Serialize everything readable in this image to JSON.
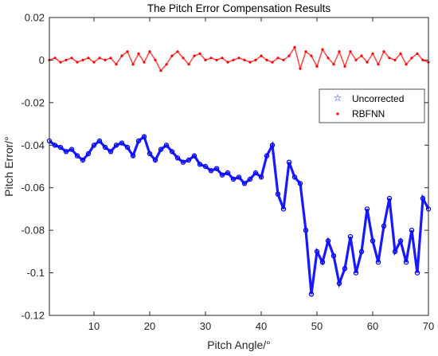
{
  "chart_data": {
    "type": "scatter",
    "title": "The Pitch Error Compensation Results",
    "xlabel": "Pitch Angle/°",
    "ylabel": "Pitch Error/°",
    "xlim": [
      2,
      70
    ],
    "ylim": [
      -0.12,
      0.02
    ],
    "xticks": [
      10,
      20,
      30,
      40,
      50,
      60,
      70
    ],
    "yticks": [
      -0.12,
      -0.1,
      -0.08,
      -0.06,
      -0.04,
      -0.02,
      0,
      0.02
    ],
    "ytick_labels": [
      "-0.12",
      "-0.1",
      "-0.08",
      "-0.06",
      "-0.04",
      "-0.02",
      "0",
      "0.02"
    ],
    "grid": false,
    "legend_position": "right",
    "series": [
      {
        "name": "Uncorrected",
        "marker": "star",
        "color": "#0000ff",
        "x": [
          2,
          3,
          4,
          5,
          6,
          7,
          8,
          9,
          10,
          11,
          12,
          13,
          14,
          15,
          16,
          17,
          18,
          19,
          20,
          21,
          22,
          23,
          24,
          25,
          26,
          27,
          28,
          29,
          30,
          31,
          32,
          33,
          34,
          35,
          36,
          37,
          38,
          39,
          40,
          41,
          42,
          43,
          44,
          45,
          46,
          47,
          48,
          49,
          50,
          51,
          52,
          53,
          54,
          55,
          56,
          57,
          58,
          59,
          60,
          61,
          62,
          63,
          64,
          65,
          66,
          67,
          68,
          69,
          70
        ],
        "y": [
          -0.038,
          -0.04,
          -0.041,
          -0.043,
          -0.042,
          -0.045,
          -0.047,
          -0.044,
          -0.04,
          -0.038,
          -0.041,
          -0.043,
          -0.04,
          -0.039,
          -0.041,
          -0.045,
          -0.038,
          -0.036,
          -0.044,
          -0.047,
          -0.042,
          -0.04,
          -0.043,
          -0.046,
          -0.048,
          -0.047,
          -0.045,
          -0.049,
          -0.05,
          -0.052,
          -0.051,
          -0.054,
          -0.053,
          -0.056,
          -0.055,
          -0.058,
          -0.056,
          -0.053,
          -0.055,
          -0.045,
          -0.04,
          -0.063,
          -0.07,
          -0.048,
          -0.055,
          -0.058,
          -0.08,
          -0.11,
          -0.09,
          -0.095,
          -0.085,
          -0.092,
          -0.105,
          -0.098,
          -0.083,
          -0.1,
          -0.09,
          -0.07,
          -0.085,
          -0.095,
          -0.078,
          -0.065,
          -0.09,
          -0.085,
          -0.095,
          -0.08,
          -0.1,
          -0.065,
          -0.07
        ]
      },
      {
        "name": "RBFNN",
        "marker": "dot",
        "color": "#ff0000",
        "x": [
          2,
          3,
          4,
          5,
          6,
          7,
          8,
          9,
          10,
          11,
          12,
          13,
          14,
          15,
          16,
          17,
          18,
          19,
          20,
          21,
          22,
          23,
          24,
          25,
          26,
          27,
          28,
          29,
          30,
          31,
          32,
          33,
          34,
          35,
          36,
          37,
          38,
          39,
          40,
          41,
          42,
          43,
          44,
          45,
          46,
          47,
          48,
          49,
          50,
          51,
          52,
          53,
          54,
          55,
          56,
          57,
          58,
          59,
          60,
          61,
          62,
          63,
          64,
          65,
          66,
          67,
          68,
          69,
          70
        ],
        "y": [
          0.0,
          0.001,
          -0.001,
          0.0,
          0.001,
          -0.001,
          0.0,
          0.001,
          -0.001,
          0.001,
          0.0,
          0.001,
          -0.002,
          0.002,
          0.004,
          -0.002,
          0.003,
          -0.001,
          0.004,
          0.0,
          -0.005,
          -0.002,
          0.002,
          0.004,
          0.001,
          -0.002,
          0.002,
          0.003,
          0.0,
          0.001,
          0.0,
          0.001,
          -0.001,
          0.0,
          0.001,
          0.0,
          -0.001,
          0.0,
          0.002,
          0.0,
          -0.001,
          0.001,
          0.0,
          0.002,
          0.006,
          -0.004,
          0.004,
          0.002,
          -0.003,
          0.005,
          0.001,
          -0.002,
          0.004,
          -0.003,
          0.004,
          0.0,
          0.002,
          -0.001,
          0.003,
          -0.002,
          0.004,
          0.001,
          0.0,
          0.003,
          -0.002,
          0.001,
          0.003,
          0.0,
          -0.001
        ]
      }
    ]
  }
}
